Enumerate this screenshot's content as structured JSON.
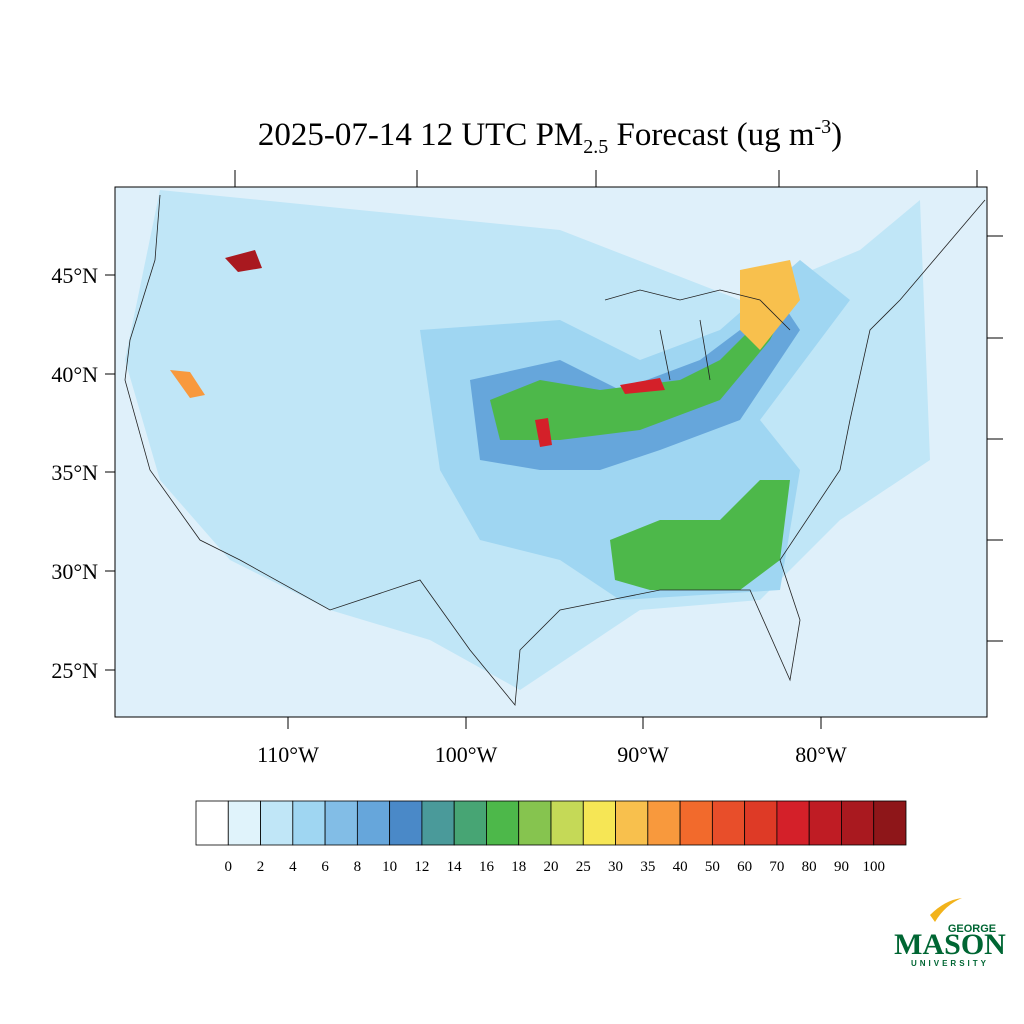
{
  "title": {
    "prefix": "2025-07-14 12 UTC PM",
    "subscript": "2.5",
    "middle": " Forecast (ug m",
    "superscript": "-3",
    "suffix": ")"
  },
  "lat_labels": [
    "45°N",
    "40°N",
    "35°N",
    "30°N",
    "25°N"
  ],
  "lon_labels": [
    "110°W",
    "100°W",
    "90°W",
    "80°W"
  ],
  "colorbar": {
    "colors": [
      "#ffffff",
      "#e0f3fb",
      "#c0e6f7",
      "#9fd6f2",
      "#82bde6",
      "#66a6db",
      "#4a89c8",
      "#4a9a9a",
      "#47a574",
      "#4db84a",
      "#86c44f",
      "#c5d957",
      "#f6e655",
      "#f8c04d",
      "#f8993d",
      "#f26a2c",
      "#e84e2a",
      "#de3a26",
      "#d42029",
      "#bf1c24",
      "#a9191f",
      "#8e1619"
    ],
    "labels": [
      "0",
      "2",
      "4",
      "6",
      "8",
      "10",
      "12",
      "14",
      "16",
      "18",
      "20",
      "25",
      "30",
      "35",
      "40",
      "50",
      "60",
      "70",
      "80",
      "90",
      "100"
    ]
  },
  "logo": {
    "top": "GEORGE",
    "main": "MASON",
    "bottom": "UNIVERSITY"
  }
}
